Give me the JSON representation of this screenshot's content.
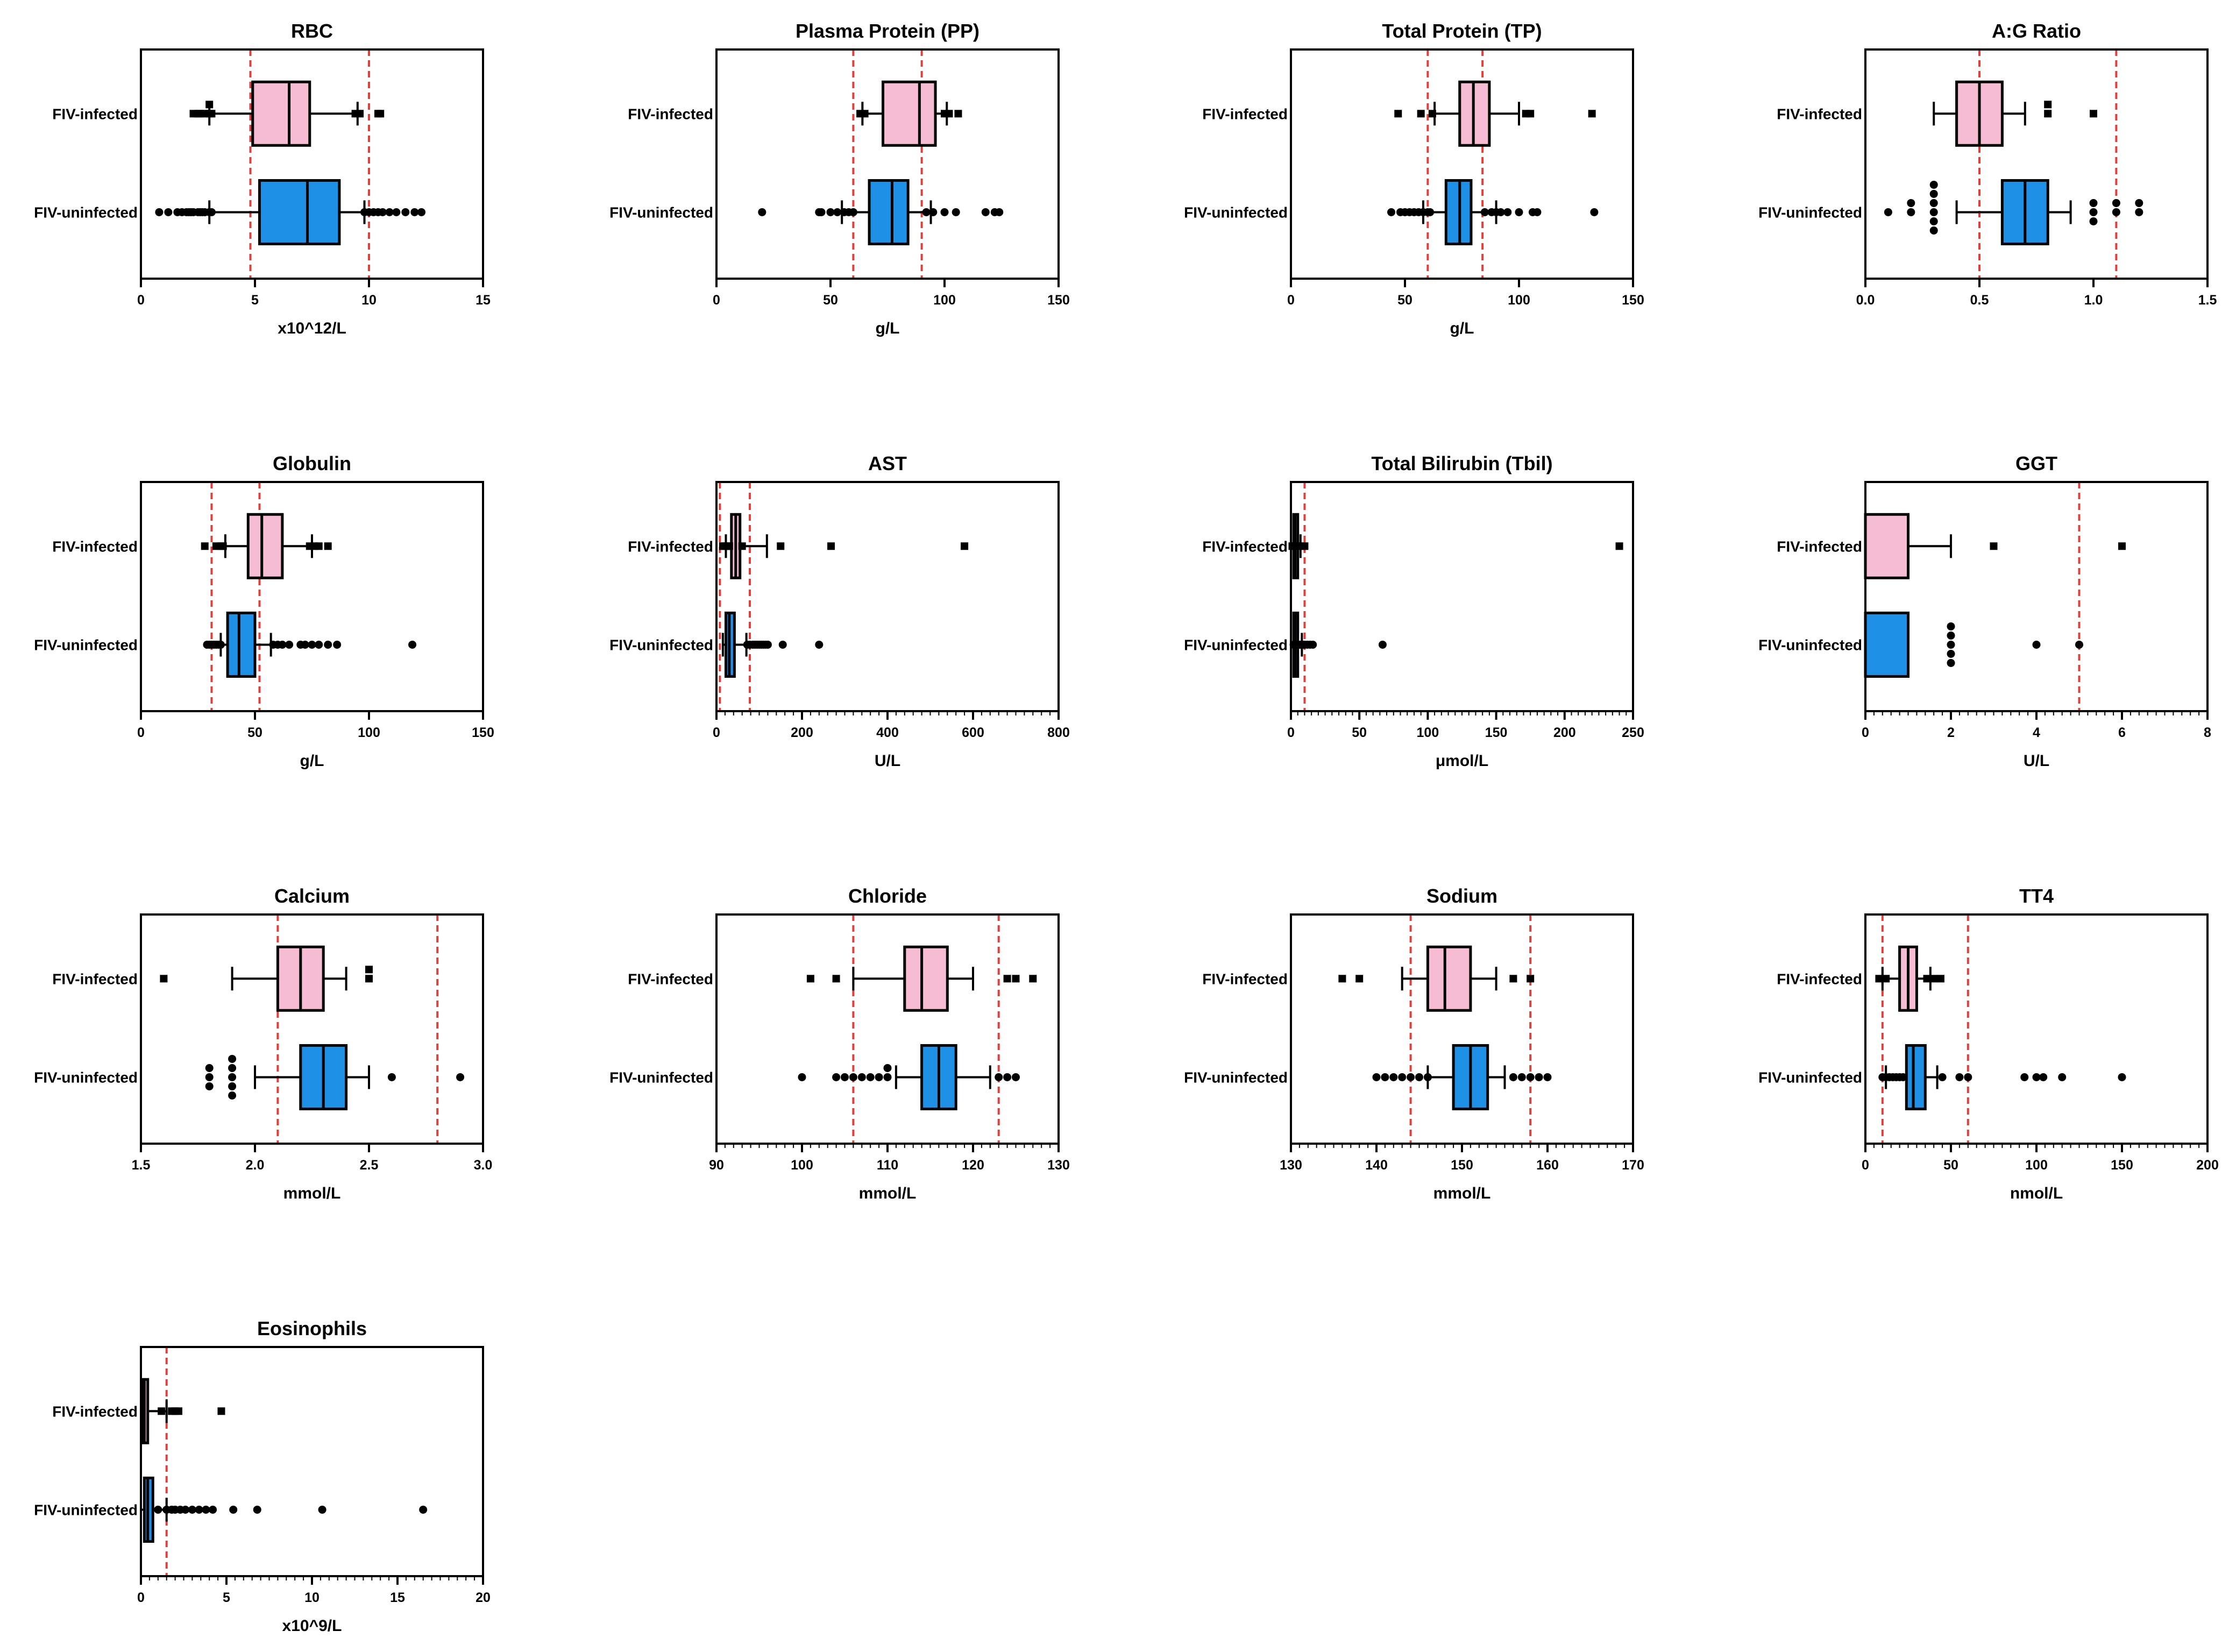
{
  "colors": {
    "infected_fill": "#F6BCD3",
    "uninfected_fill": "#1E90E6",
    "ref_line": "#E0403A",
    "ink": "#000000"
  },
  "chart_data": [
    {
      "type": "box",
      "title": "RBC",
      "xlabel": "x10^12/L",
      "xlim": [
        0,
        15
      ],
      "ticks": [
        0,
        5,
        10,
        15
      ],
      "tick_labels": [
        "0",
        "5",
        "10",
        "15"
      ],
      "minor_step": null,
      "ref_lines": [
        4.8,
        10
      ],
      "groups": [
        {
          "name": "FIV-infected",
          "min": 3.0,
          "q1": 4.9,
          "median": 6.5,
          "q3": 7.4,
          "max": 9.5,
          "outliers": [
            2.3,
            2.5,
            2.6,
            2.8,
            3.0,
            3.0,
            3.1,
            9.4,
            9.6,
            10.4,
            10.5
          ]
        },
        {
          "name": "FIV-uninfected",
          "min": 3.0,
          "q1": 5.2,
          "median": 7.3,
          "q3": 8.7,
          "max": 9.8,
          "outliers": [
            0.8,
            1.2,
            1.6,
            1.8,
            2.0,
            2.1,
            2.2,
            2.3,
            2.5,
            2.6,
            2.7,
            2.8,
            3.0,
            3.1,
            9.8,
            10.0,
            10.2,
            10.4,
            10.6,
            10.9,
            11.2,
            11.6,
            12.0,
            12.3
          ]
        }
      ]
    },
    {
      "type": "box",
      "title": "Plasma Protein (PP)",
      "xlabel": "g/L",
      "xlim": [
        0,
        150
      ],
      "ticks": [
        0,
        50,
        100,
        150
      ],
      "tick_labels": [
        "0",
        "50",
        "100",
        "150"
      ],
      "minor_step": null,
      "ref_lines": [
        60,
        90
      ],
      "groups": [
        {
          "name": "FIV-infected",
          "min": 64,
          "q1": 73,
          "median": 89,
          "q3": 96,
          "max": 101,
          "outliers": [
            63,
            65,
            100,
            102,
            106
          ]
        },
        {
          "name": "FIV-uninfected",
          "min": 55,
          "q1": 67,
          "median": 77,
          "q3": 84,
          "max": 94,
          "outliers": [
            20,
            45,
            46,
            50,
            53,
            56,
            58,
            60,
            92,
            95,
            100,
            105,
            118,
            122,
            124
          ]
        }
      ]
    },
    {
      "type": "box",
      "title": "Total Protein (TP)",
      "xlabel": "g/L",
      "xlim": [
        0,
        150
      ],
      "ticks": [
        0,
        50,
        100,
        150
      ],
      "tick_labels": [
        "0",
        "50",
        "100",
        "150"
      ],
      "minor_step": null,
      "ref_lines": [
        60,
        84
      ],
      "groups": [
        {
          "name": "FIV-infected",
          "min": 63,
          "q1": 74,
          "median": 80,
          "q3": 87,
          "max": 100,
          "outliers": [
            47,
            57,
            62,
            103,
            105,
            132
          ]
        },
        {
          "name": "FIV-uninfected",
          "min": 58,
          "q1": 68,
          "median": 74,
          "q3": 79,
          "max": 90,
          "outliers": [
            44,
            48,
            50,
            52,
            54,
            56,
            58,
            60,
            61,
            85,
            88,
            90,
            92,
            95,
            100,
            106,
            108,
            133
          ]
        }
      ]
    },
    {
      "type": "box",
      "title": "A:G Ratio",
      "xlabel": "",
      "xlim": [
        0,
        1.5
      ],
      "ticks": [
        0,
        0.5,
        1.0,
        1.5
      ],
      "tick_labels": [
        "0.0",
        "0.5",
        "1.0",
        "1.5"
      ],
      "minor_step": null,
      "ref_lines": [
        0.5,
        1.1
      ],
      "groups": [
        {
          "name": "FIV-infected",
          "min": 0.3,
          "q1": 0.4,
          "median": 0.5,
          "q3": 0.6,
          "max": 0.7,
          "outliers": [
            0.8,
            0.8,
            1.0
          ]
        },
        {
          "name": "FIV-uninfected",
          "min": 0.4,
          "q1": 0.6,
          "median": 0.7,
          "q3": 0.8,
          "max": 0.9,
          "outliers": [
            0.1,
            0.2,
            0.2,
            0.3,
            0.3,
            0.3,
            0.3,
            0.3,
            0.3,
            1.0,
            1.0,
            1.0,
            1.1,
            1.1,
            1.2,
            1.2
          ]
        }
      ]
    },
    {
      "type": "box",
      "title": "Globulin",
      "xlabel": "g/L",
      "xlim": [
        0,
        150
      ],
      "ticks": [
        0,
        50,
        100,
        150
      ],
      "tick_labels": [
        "0",
        "50",
        "100",
        "150"
      ],
      "minor_step": null,
      "ref_lines": [
        31,
        52
      ],
      "groups": [
        {
          "name": "FIV-infected",
          "min": 37,
          "q1": 47,
          "median": 53,
          "q3": 62,
          "max": 75,
          "outliers": [
            28,
            33,
            35,
            36,
            74,
            76,
            78,
            82
          ]
        },
        {
          "name": "FIV-uninfected",
          "min": 35,
          "q1": 38,
          "median": 43,
          "q3": 50,
          "max": 57,
          "outliers": [
            29,
            30,
            31,
            32,
            33,
            34,
            35,
            58,
            60,
            62,
            65,
            70,
            72,
            75,
            78,
            82,
            86,
            119
          ]
        }
      ]
    },
    {
      "type": "box",
      "title": "AST",
      "xlabel": "U/L",
      "xlim": [
        0,
        800
      ],
      "ticks": [
        0,
        200,
        400,
        600,
        800
      ],
      "tick_labels": [
        "0",
        "200",
        "400",
        "600",
        "800"
      ],
      "minor_step": 20,
      "ref_lines": [
        8,
        78
      ],
      "groups": [
        {
          "name": "FIV-infected",
          "min": 22,
          "q1": 35,
          "median": 45,
          "q3": 55,
          "max": 118,
          "outliers": [
            15,
            20,
            25,
            30,
            60,
            150,
            268,
            580
          ]
        },
        {
          "name": "FIV-uninfected",
          "min": 15,
          "q1": 22,
          "median": 30,
          "q3": 42,
          "max": 70,
          "outliers": [
            72,
            78,
            85,
            90,
            95,
            100,
            105,
            110,
            115,
            120,
            155,
            240
          ]
        }
      ]
    },
    {
      "type": "box",
      "title": "Total Bilirubin (Tbil)",
      "xlabel": "μmol/L",
      "xlim": [
        0,
        250
      ],
      "ticks": [
        0,
        50,
        100,
        150,
        200,
        250
      ],
      "tick_labels": [
        "0",
        "50",
        "100",
        "150",
        "200",
        "250"
      ],
      "minor_step": 5,
      "ref_lines": [
        0,
        10
      ],
      "groups": [
        {
          "name": "FIV-infected",
          "min": 0,
          "q1": 2,
          "median": 3,
          "q3": 5,
          "max": 7,
          "outliers": [
            1,
            2,
            4,
            8,
            10,
            240
          ]
        },
        {
          "name": "FIV-uninfected",
          "min": 0,
          "q1": 2,
          "median": 3,
          "q3": 5,
          "max": 8,
          "outliers": [
            2,
            3,
            4,
            5,
            6,
            7,
            8,
            9,
            10,
            12,
            14,
            16,
            67
          ]
        }
      ]
    },
    {
      "type": "box",
      "title": "GGT",
      "xlabel": "U/L",
      "xlim": [
        0,
        8
      ],
      "ticks": [
        0,
        2,
        4,
        6,
        8
      ],
      "tick_labels": [
        "0",
        "2",
        "4",
        "6",
        "8"
      ],
      "minor_step": 0.2,
      "ref_lines": [
        0,
        5
      ],
      "groups": [
        {
          "name": "FIV-infected",
          "min": 0,
          "q1": 0,
          "median": 0,
          "q3": 1,
          "max": 2,
          "outliers": [
            3,
            6
          ]
        },
        {
          "name": "FIV-uninfected",
          "min": 0,
          "q1": 0,
          "median": 0,
          "q3": 1,
          "max": 1,
          "outliers": [
            2,
            2,
            2,
            2,
            2,
            4,
            5
          ]
        }
      ]
    },
    {
      "type": "box",
      "title": "Calcium",
      "xlabel": "mmol/L",
      "xlim": [
        1.5,
        3.0
      ],
      "ticks": [
        1.5,
        2.0,
        2.5,
        3.0
      ],
      "tick_labels": [
        "1.5",
        "2.0",
        "2.5",
        "3.0"
      ],
      "minor_step": null,
      "ref_lines": [
        2.1,
        2.8
      ],
      "groups": [
        {
          "name": "FIV-infected",
          "min": 1.9,
          "q1": 2.1,
          "median": 2.2,
          "q3": 2.3,
          "max": 2.4,
          "outliers": [
            1.6,
            2.5,
            2.5
          ]
        },
        {
          "name": "FIV-uninfected",
          "min": 2.0,
          "q1": 2.2,
          "median": 2.3,
          "q3": 2.4,
          "max": 2.5,
          "outliers": [
            1.8,
            1.8,
            1.8,
            1.9,
            1.9,
            1.9,
            1.9,
            1.9,
            2.6,
            2.9
          ]
        }
      ]
    },
    {
      "type": "box",
      "title": "Chloride",
      "xlabel": "mmol/L",
      "xlim": [
        90,
        130
      ],
      "ticks": [
        90,
        100,
        110,
        120,
        130
      ],
      "tick_labels": [
        "90",
        "100",
        "110",
        "120",
        "130"
      ],
      "minor_step": 1,
      "ref_lines": [
        106,
        123
      ],
      "groups": [
        {
          "name": "FIV-infected",
          "min": 106,
          "q1": 112,
          "median": 114,
          "q3": 117,
          "max": 120,
          "outliers": [
            101,
            104,
            124,
            125,
            127
          ]
        },
        {
          "name": "FIV-uninfected",
          "min": 111,
          "q1": 114,
          "median": 116,
          "q3": 118,
          "max": 122,
          "outliers": [
            100,
            104,
            105,
            106,
            107,
            108,
            109,
            110,
            110,
            123,
            124,
            125
          ]
        }
      ]
    },
    {
      "type": "box",
      "title": "Sodium",
      "xlabel": "mmol/L",
      "xlim": [
        130,
        170
      ],
      "ticks": [
        130,
        140,
        150,
        160,
        170
      ],
      "tick_labels": [
        "130",
        "140",
        "150",
        "160",
        "170"
      ],
      "minor_step": 1,
      "ref_lines": [
        144,
        158
      ],
      "groups": [
        {
          "name": "FIV-infected",
          "min": 143,
          "q1": 146,
          "median": 148,
          "q3": 151,
          "max": 154,
          "outliers": [
            136,
            138,
            156,
            158
          ]
        },
        {
          "name": "FIV-uninfected",
          "min": 146,
          "q1": 149,
          "median": 151,
          "q3": 153,
          "max": 155,
          "outliers": [
            140,
            141,
            142,
            143,
            144,
            145,
            146,
            156,
            157,
            158,
            159,
            160
          ]
        }
      ]
    },
    {
      "type": "box",
      "title": "TT4",
      "xlabel": "nmol/L",
      "xlim": [
        0,
        200
      ],
      "ticks": [
        0,
        50,
        100,
        150,
        200
      ],
      "tick_labels": [
        "0",
        "50",
        "100",
        "150",
        "200"
      ],
      "minor_step": 5,
      "ref_lines": [
        10,
        60
      ],
      "groups": [
        {
          "name": "FIV-infected",
          "min": 10,
          "q1": 20,
          "median": 25,
          "q3": 30,
          "max": 38,
          "outliers": [
            8,
            12,
            36,
            40,
            44
          ]
        },
        {
          "name": "FIV-uninfected",
          "min": 12,
          "q1": 24,
          "median": 28,
          "q3": 35,
          "max": 42,
          "outliers": [
            10,
            12,
            14,
            16,
            18,
            20,
            22,
            45,
            55,
            60,
            93,
            100,
            104,
            115,
            150
          ]
        }
      ]
    },
    {
      "type": "box",
      "title": "Eosinophils",
      "xlabel": "x10^9/L",
      "xlim": [
        0,
        20
      ],
      "ticks": [
        0,
        5,
        10,
        15,
        20
      ],
      "tick_labels": [
        "0",
        "5",
        "10",
        "15",
        "20"
      ],
      "minor_step": 0.5,
      "ref_lines": [
        0,
        1.5
      ],
      "groups": [
        {
          "name": "FIV-infected",
          "min": 0,
          "q1": 0.1,
          "median": 0.2,
          "q3": 0.4,
          "max": 1.5,
          "outliers": [
            1.2,
            1.8,
            2.0,
            2.2,
            4.7
          ]
        },
        {
          "name": "FIV-uninfected",
          "min": 0,
          "q1": 0.2,
          "median": 0.4,
          "q3": 0.7,
          "max": 1.5,
          "outliers": [
            1.0,
            1.5,
            1.8,
            2.0,
            2.3,
            2.6,
            3.0,
            3.4,
            3.8,
            4.2,
            5.4,
            6.8,
            10.6,
            16.5
          ]
        }
      ]
    }
  ]
}
